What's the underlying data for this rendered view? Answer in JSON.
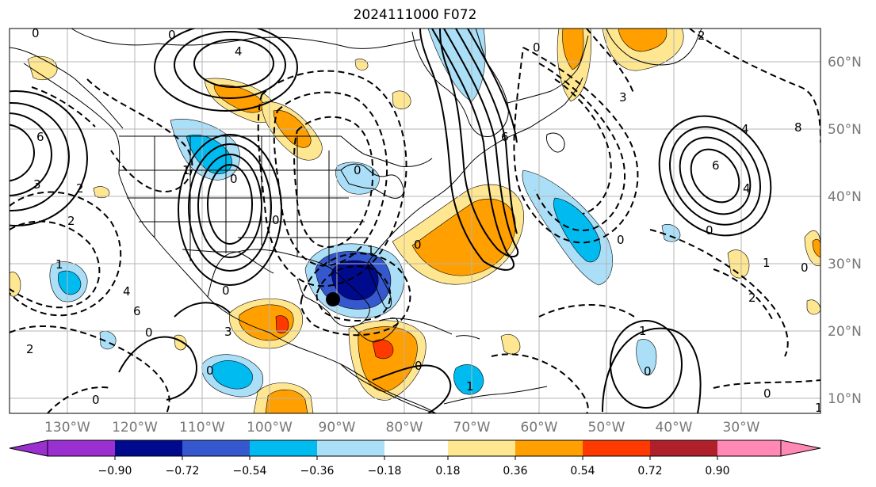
{
  "title": "2024111000 F072",
  "map": {
    "longitude_labels": [
      "130°W",
      "120°W",
      "110°W",
      "100°W",
      "90°W",
      "80°W",
      "70°W",
      "60°W",
      "50°W",
      "40°W",
      "30°W"
    ],
    "latitude_labels": [
      "60°N",
      "50°N",
      "40°N",
      "30°N",
      "20°N",
      "10°N"
    ],
    "contour_labels": [
      "0",
      "0",
      "4",
      "6",
      "3",
      "2",
      "1",
      "4",
      "6",
      "0",
      "2",
      "0",
      "3",
      "0",
      "0",
      "0",
      "1",
      "2",
      "0",
      "1",
      "0",
      "0",
      "6",
      "3",
      "0",
      "4",
      "6",
      "2",
      "1",
      "0",
      "0",
      "1",
      "2",
      "4",
      "8",
      "1",
      "0",
      "0",
      "0",
      "1",
      "0"
    ],
    "storm_marker": "filled-black-circle"
  },
  "colorbar": {
    "tick_labels": [
      "−0.90",
      "−0.72",
      "−0.54",
      "−0.36",
      "−0.18",
      "0.18",
      "0.36",
      "0.54",
      "0.72",
      "0.90"
    ],
    "colors": [
      "#9b30d0",
      "#000a8c",
      "#3558cf",
      "#00bbf0",
      "#abdff8",
      "#ffffff",
      "#ffe690",
      "#ff9f00",
      "#ff3a00",
      "#b0202a",
      "#ff88b4"
    ]
  }
}
